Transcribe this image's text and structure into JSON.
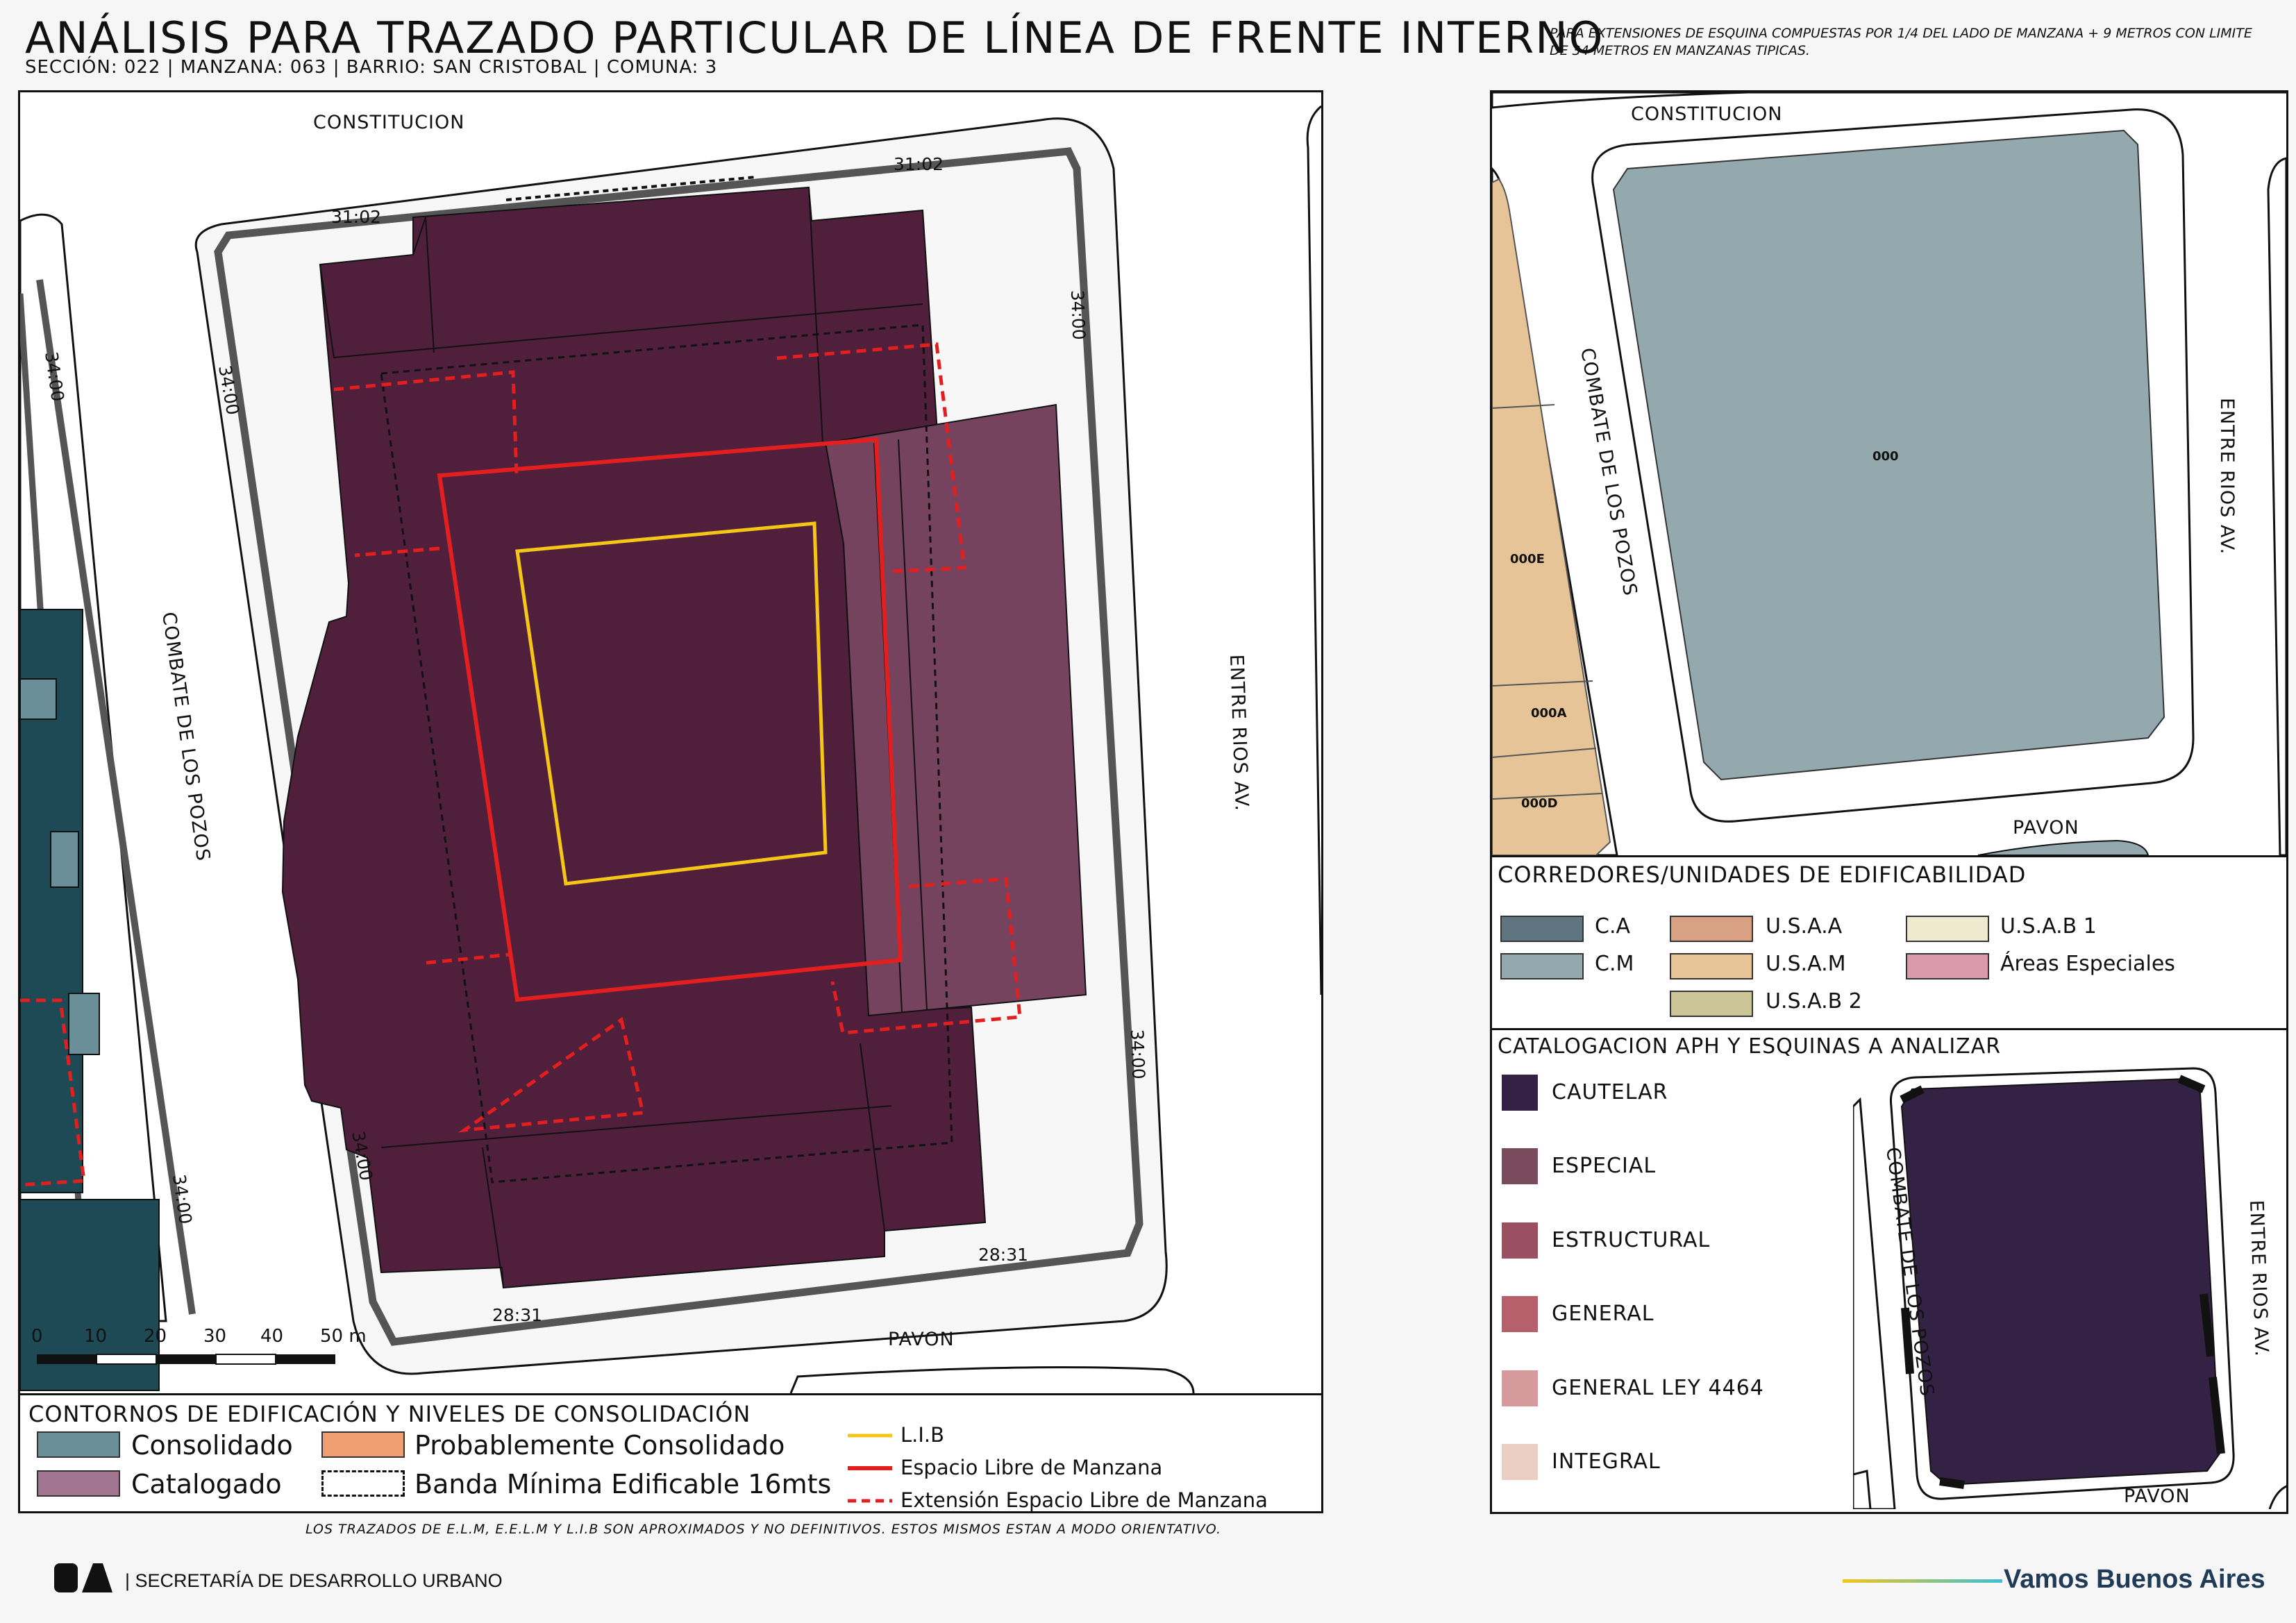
{
  "header": {
    "title": "ANÁLISIS PARA TRAZADO PARTICULAR DE LÍNEA DE FRENTE INTERNO",
    "subtitle": "SECCIÓN: 022 |  MANZANA: 063 | BARRIO: SAN CRISTOBAL | COMUNA: 3",
    "note": "PARA EXTENSIONES DE ESQUINA COMPUESTAS POR 1/4 DEL LADO DE MANZANA + 9 METROS CON LIMITE DE 34 METROS EN MANZANAS TIPICAS."
  },
  "main_map": {
    "streets": {
      "north": "CONSTITUCION",
      "west": "COMBATE DE LOS POZOS",
      "east": "ENTRE RIOS AV.",
      "south": "PAVON"
    },
    "dimensions": {
      "north_left": "31:02",
      "north_right": "31:02",
      "west_upper": "34:00",
      "west_lower": "34:00",
      "east_upper": "34:00",
      "east_lower": "34:00",
      "south_left": "28:31",
      "south_right": "28:31",
      "far_west_upper": "34:00",
      "far_west_lower": "34:00"
    },
    "scale": {
      "ticks": [
        "0",
        "10",
        "20",
        "30",
        "40",
        "50 m"
      ]
    },
    "colors": {
      "cautelar_fill": "#4f1f3c",
      "especial_fill": "#76435f",
      "consolidado_fill": "#1e4a55",
      "lib_line": "#f5c518",
      "elm_line": "#e31e1e"
    }
  },
  "legend_bottom": {
    "title": "CONTORNOS DE EDIFICACIÓN Y NIVELES DE CONSOLIDACIÓN",
    "items": [
      {
        "label": "Consolidado",
        "color": "#6b8f99"
      },
      {
        "label": "Probablemente Consolidado",
        "color": "#ee9e72"
      },
      {
        "label": "Catalogado",
        "color": "#a27690"
      },
      {
        "label": "Banda Mínima Edificable 16mts",
        "color": "#ffffff"
      }
    ],
    "lines": [
      {
        "label": "L.I.B",
        "color": "#f5c518"
      },
      {
        "label": "Espacio Libre de Manzana",
        "color": "#e31e1e"
      },
      {
        "label": "Extensión Espacio Libre de Manzana",
        "color": "#e31e1e"
      }
    ]
  },
  "right_top_map": {
    "streets": {
      "north": "CONSTITUCION",
      "west": "COMBATE DE LOS POZOS",
      "east": "ENTRE RIOS AV.",
      "south": "PAVON"
    },
    "parcels": {
      "main": "000",
      "west_1": "000E",
      "west_2": "000A",
      "west_3": "000D"
    },
    "block_color": "#94a9ad",
    "parcel_color": "#e6c497"
  },
  "corredores": {
    "title": "CORREDORES/UNIDADES DE EDIFICABILIDAD",
    "items": [
      {
        "label": "C.A",
        "color": "#5f7580"
      },
      {
        "label": "C.M",
        "color": "#94a9ad"
      },
      {
        "label": "U.S.A.A",
        "color": "#d9a183"
      },
      {
        "label": "U.S.A.M",
        "color": "#e6c497"
      },
      {
        "label": "U.S.A.B 2",
        "color": "#cbc597"
      },
      {
        "label": "U.S.A.B 1",
        "color": "#efe9d0"
      },
      {
        "label": "Áreas Especiales",
        "color": "#db9aab"
      }
    ]
  },
  "catalogacion": {
    "title": "CATALOGACION APH Y ESQUINAS A ANALIZAR",
    "items": [
      {
        "label": "CAUTELAR",
        "color": "#332244"
      },
      {
        "label": "ESPECIAL",
        "color": "#7a4b5c"
      },
      {
        "label": "ESTRUCTURAL",
        "color": "#9b5062"
      },
      {
        "label": "GENERAL",
        "color": "#b6606b"
      },
      {
        "label": "GENERAL LEY 4464",
        "color": "#d69a9c"
      },
      {
        "label": "INTEGRAL",
        "color": "#eacdc3"
      }
    ],
    "mini_map": {
      "west": "COMBATE DE LOS POZOS",
      "east": "ENTRE RIOS AV.",
      "south": "PAVON",
      "block_color": "#332244"
    }
  },
  "footer": {
    "disclaimer": "LOS TRAZADOS DE E.L.M, E.E.L.M Y L.I.B SON APROXIMADOS Y NO DEFINITIVOS. ESTOS MISMOS ESTAN A MODO ORIENTATIVO.",
    "logo": "BA",
    "secretaria": "| SECRETARÍA DE DESARROLLO URBANO",
    "slogan": "Vamos Buenos Aires"
  }
}
